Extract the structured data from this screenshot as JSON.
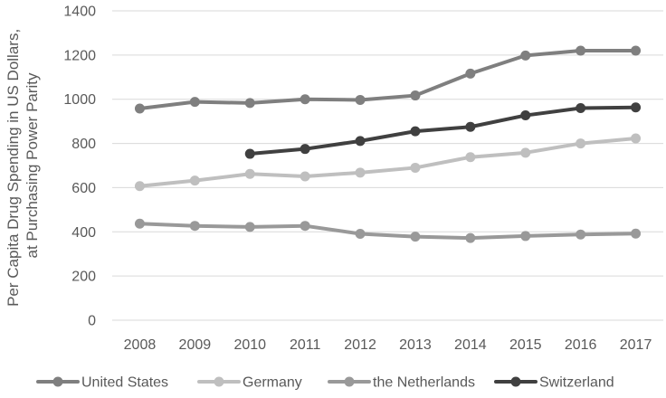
{
  "chart_data": {
    "type": "line",
    "title": "",
    "xlabel": "",
    "ylabel_lines": [
      "Per Capita Drug Spending in US Dollars,",
      "at Purchasing Power Parity"
    ],
    "categories": [
      "2008",
      "2009",
      "2010",
      "2011",
      "2012",
      "2013",
      "2014",
      "2015",
      "2016",
      "2017"
    ],
    "ylim": [
      0,
      1400
    ],
    "yticks": [
      "0",
      "200",
      "400",
      "600",
      "800",
      "1000",
      "1200",
      "1400"
    ],
    "grid": true,
    "legend_position": "bottom",
    "series": [
      {
        "name": "United States",
        "color": "#7f7f7f",
        "values": [
          958,
          988,
          983,
          1000,
          997,
          1017,
          1116,
          1198,
          1220,
          1220
        ]
      },
      {
        "name": "Germany",
        "color": "#bfbfbf",
        "values": [
          607,
          632,
          662,
          651,
          668,
          690,
          738,
          758,
          800,
          823
        ]
      },
      {
        "name": "the Netherlands",
        "color": "#999999",
        "values": [
          437,
          427,
          422,
          427,
          391,
          378,
          372,
          381,
          388,
          392
        ]
      },
      {
        "name": "Switzerland",
        "color": "#404040",
        "values": [
          null,
          null,
          753,
          775,
          811,
          855,
          875,
          927,
          960,
          963
        ]
      }
    ]
  }
}
